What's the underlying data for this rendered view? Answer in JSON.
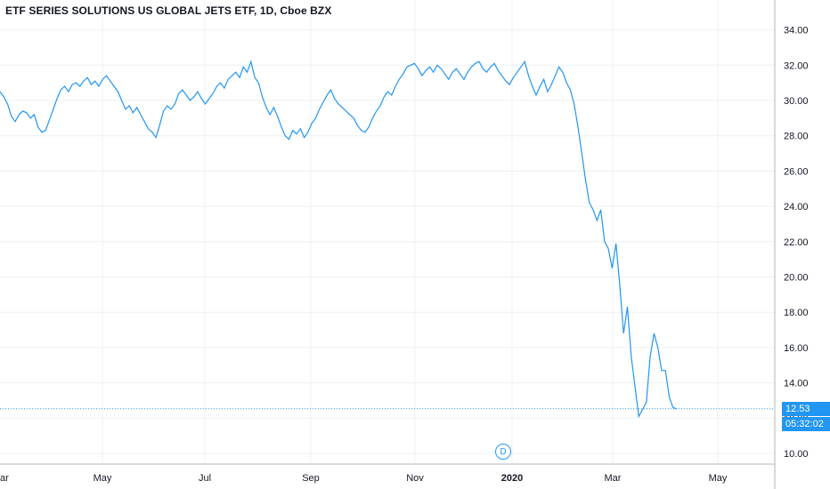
{
  "title": "ETF SERIES SOLUTIONS US GLOBAL JETS ETF, 1D, Cboe BZX",
  "last_price_label": "12.53",
  "countdown_label": "05:32:02",
  "marker_label": "D",
  "colors": {
    "line": "#2196f3",
    "text": "#131722",
    "grid": "#eef0f4",
    "axis": "#b2b5be"
  },
  "chart_data": {
    "type": "line",
    "title": "ETF SERIES SOLUTIONS US GLOBAL JETS ETF, 1D, Cboe BZX",
    "ylim": [
      9.5,
      35
    ],
    "y_ticks": [
      "34.00",
      "32.00",
      "30.00",
      "28.00",
      "26.00",
      "24.00",
      "22.00",
      "20.00",
      "18.00",
      "16.00",
      "14.00",
      "12.00",
      "10.00"
    ],
    "x_ticks": [
      {
        "label": "ar",
        "bold": false
      },
      {
        "label": "May",
        "bold": false
      },
      {
        "label": "Jul",
        "bold": false
      },
      {
        "label": "Sep",
        "bold": false
      },
      {
        "label": "Nov",
        "bold": false
      },
      {
        "label": "2020",
        "bold": true
      },
      {
        "label": "Mar",
        "bold": false
      },
      {
        "label": "May",
        "bold": false
      }
    ],
    "last_value": 12.53,
    "series": [
      {
        "values": [
          30.5,
          30.2,
          29.8,
          29.1,
          28.8,
          29.2,
          29.4,
          29.3,
          29.0,
          29.2,
          28.5,
          28.2,
          28.3,
          28.9,
          29.5,
          30.1,
          30.6,
          30.8,
          30.5,
          30.9,
          31.0,
          30.8,
          31.1,
          31.3,
          30.9,
          31.1,
          30.8,
          31.2,
          31.4,
          31.1,
          30.8,
          30.5,
          30.0,
          29.5,
          29.7,
          29.3,
          29.6,
          29.2,
          28.8,
          28.4,
          28.2,
          27.9,
          28.6,
          29.4,
          29.7,
          29.5,
          29.8,
          30.4,
          30.6,
          30.3,
          30.0,
          30.2,
          30.5,
          30.1,
          29.8,
          30.1,
          30.4,
          30.8,
          31.0,
          30.7,
          31.2,
          31.4,
          31.6,
          31.3,
          31.9,
          31.6,
          32.2,
          31.3,
          31.0,
          30.2,
          29.6,
          29.2,
          29.6,
          29.1,
          28.5,
          28.0,
          27.8,
          28.3,
          28.1,
          28.4,
          27.9,
          28.2,
          28.7,
          29.0,
          29.5,
          29.9,
          30.3,
          30.6,
          30.1,
          29.8,
          29.6,
          29.4,
          29.2,
          29.0,
          28.6,
          28.3,
          28.2,
          28.5,
          29.0,
          29.4,
          29.7,
          30.2,
          30.5,
          30.3,
          30.8,
          31.2,
          31.5,
          31.9,
          32.0,
          32.1,
          31.8,
          31.4,
          31.7,
          31.9,
          31.6,
          32.0,
          31.8,
          31.5,
          31.2,
          31.6,
          31.8,
          31.5,
          31.2,
          31.6,
          31.9,
          32.1,
          32.2,
          31.8,
          31.6,
          31.9,
          32.1,
          31.7,
          31.4,
          31.1,
          30.9,
          31.3,
          31.6,
          31.9,
          32.2,
          31.4,
          30.8,
          30.3,
          30.8,
          31.2,
          30.5,
          30.9,
          31.4,
          31.9,
          31.6,
          31.0,
          30.6,
          29.8,
          28.5,
          27.0,
          25.5,
          24.2,
          23.8,
          23.2,
          23.8,
          22.0,
          21.6,
          20.5,
          21.9,
          19.5,
          16.8,
          18.3,
          15.5,
          13.8,
          12.1,
          12.5,
          12.9,
          15.5,
          16.8,
          16.0,
          14.7,
          14.7,
          13.2,
          12.6,
          12.53
        ]
      }
    ]
  }
}
